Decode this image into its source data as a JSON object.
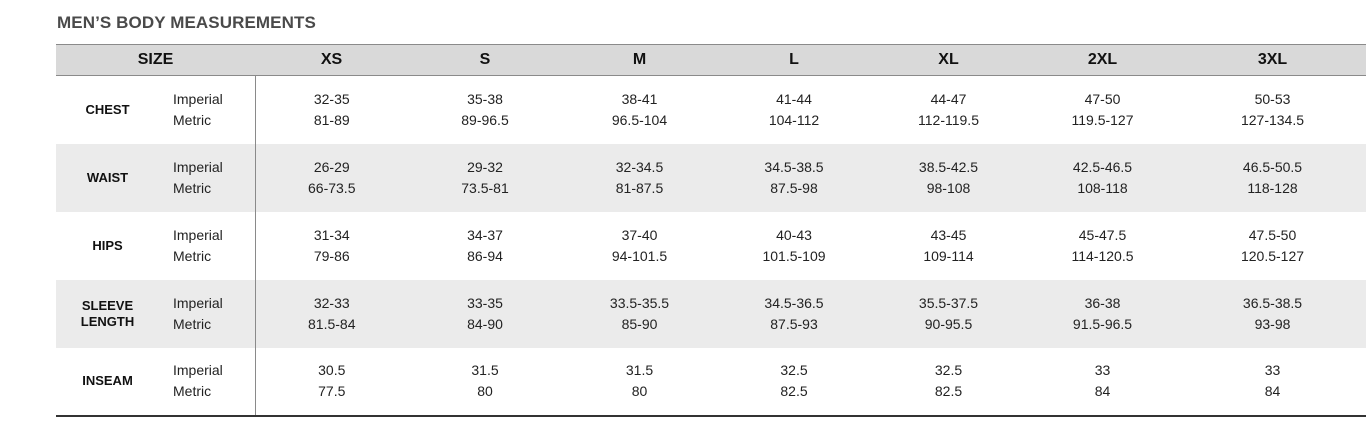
{
  "title": "MEN’S BODY MEASUREMENTS",
  "header": {
    "size_label": "SIZE",
    "sizes": [
      "XS",
      "S",
      "M",
      "L",
      "XL",
      "2XL",
      "3XL"
    ]
  },
  "rows": [
    {
      "name": "CHEST",
      "unit_imperial": "Imperial",
      "unit_metric": "Metric",
      "imperial": [
        "32-35",
        "35-38",
        "38-41",
        "41-44",
        "44-47",
        "47-50",
        "50-53"
      ],
      "metric": [
        "81-89",
        "89-96.5",
        "96.5-104",
        "104-112",
        "112-119.5",
        "119.5-127",
        "127-134.5"
      ]
    },
    {
      "name": "WAIST",
      "unit_imperial": "Imperial",
      "unit_metric": "Metric",
      "imperial": [
        "26-29",
        "29-32",
        "32-34.5",
        "34.5-38.5",
        "38.5-42.5",
        "42.5-46.5",
        "46.5-50.5"
      ],
      "metric": [
        "66-73.5",
        "73.5-81",
        "81-87.5",
        "87.5-98",
        "98-108",
        "108-118",
        "118-128"
      ]
    },
    {
      "name": "HIPS",
      "unit_imperial": "Imperial",
      "unit_metric": "Metric",
      "imperial": [
        "31-34",
        "34-37",
        "37-40",
        "40-43",
        "43-45",
        "45-47.5",
        "47.5-50"
      ],
      "metric": [
        "79-86",
        "86-94",
        "94-101.5",
        "101.5-109",
        "109-114",
        "114-120.5",
        "120.5-127"
      ]
    },
    {
      "name_line1": "SLEEVE",
      "name_line2": "LENGTH",
      "unit_imperial": "Imperial",
      "unit_metric": "Metric",
      "imperial": [
        "32-33",
        "33-35",
        "33.5-35.5",
        "34.5-36.5",
        "35.5-37.5",
        "36-38",
        "36.5-38.5"
      ],
      "metric": [
        "81.5-84",
        "84-90",
        "85-90",
        "87.5-93",
        "90-95.5",
        "91.5-96.5",
        "93-98"
      ]
    },
    {
      "name": "INSEAM",
      "unit_imperial": "Imperial",
      "unit_metric": "Metric",
      "imperial": [
        "30.5",
        "31.5",
        "31.5",
        "32.5",
        "32.5",
        "33",
        "33"
      ],
      "metric": [
        "77.5",
        "80",
        "80",
        "82.5",
        "82.5",
        "84",
        "84"
      ]
    }
  ]
}
